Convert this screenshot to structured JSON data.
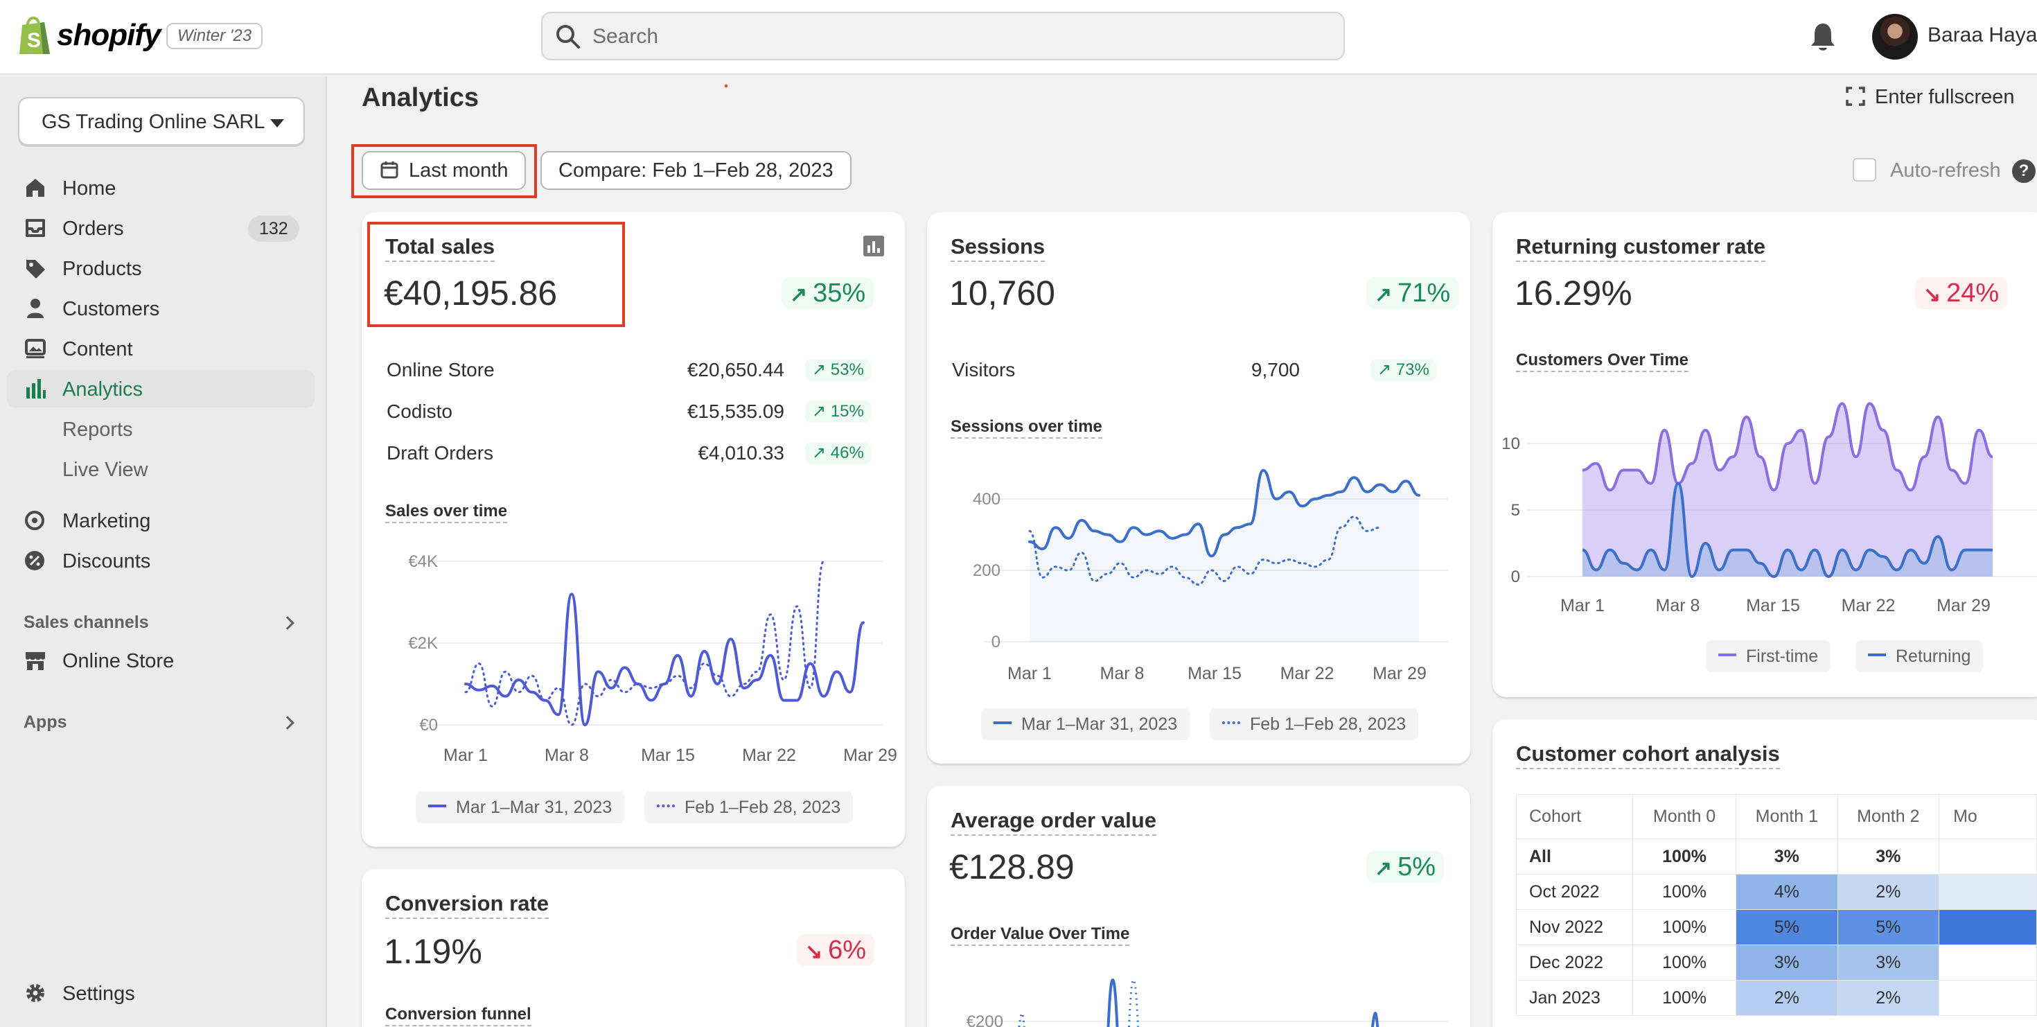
{
  "topbar": {
    "logo_text": "shopify",
    "version": "Winter '23",
    "search_placeholder": "Search",
    "user_name": "Baraa Hayani"
  },
  "sidebar": {
    "store_name": "GS Trading Online SARL",
    "items": [
      {
        "label": "Home",
        "icon": "home-icon"
      },
      {
        "label": "Orders",
        "icon": "orders-icon",
        "badge": "132"
      },
      {
        "label": "Products",
        "icon": "tag-icon"
      },
      {
        "label": "Customers",
        "icon": "person-icon"
      },
      {
        "label": "Content",
        "icon": "image-icon"
      },
      {
        "label": "Analytics",
        "icon": "bar-chart-icon",
        "active": true
      },
      {
        "label": "Reports",
        "sub": true
      },
      {
        "label": "Live View",
        "sub": true
      },
      {
        "label": "Marketing",
        "icon": "target-icon"
      },
      {
        "label": "Discounts",
        "icon": "discount-icon"
      }
    ],
    "sales_channels_label": "Sales channels",
    "online_store_label": "Online Store",
    "apps_label": "Apps",
    "settings_label": "Settings"
  },
  "main": {
    "title": "Analytics",
    "fullscreen_label": "Enter fullscreen",
    "date_button": "Last month",
    "compare_button": "Compare: Feb 1–Feb 28, 2023",
    "auto_refresh_label": "Auto-refresh"
  },
  "total_sales": {
    "title": "Total sales",
    "value": "€40,195.86",
    "change": "35%",
    "rows": [
      {
        "label": "Online Store",
        "value": "€20,650.44",
        "change": "53%"
      },
      {
        "label": "Codisto",
        "value": "€15,535.09",
        "change": "15%"
      },
      {
        "label": "Draft Orders",
        "value": "€4,010.33",
        "change": "46%"
      }
    ],
    "chart_title": "Sales over time",
    "legend_current": "Mar 1–Mar 31, 2023",
    "legend_previous": "Feb 1–Feb 28, 2023"
  },
  "sessions": {
    "title": "Sessions",
    "value": "10,760",
    "change": "71%",
    "visitors_label": "Visitors",
    "visitors_value": "9,700",
    "visitors_change": "73%",
    "chart_title": "Sessions over time",
    "legend_current": "Mar 1–Mar 31, 2023",
    "legend_previous": "Feb 1–Feb 28, 2023"
  },
  "returning": {
    "title": "Returning customer rate",
    "value": "16.29%",
    "change": "24%",
    "chart_title": "Customers Over Time",
    "legend_first": "First-time",
    "legend_returning": "Returning"
  },
  "conversion": {
    "title": "Conversion rate",
    "value": "1.19%",
    "change": "6%",
    "funnel_title": "Conversion funnel"
  },
  "aov": {
    "title": "Average order value",
    "value": "€128.89",
    "change": "5%",
    "chart_title": "Order Value Over Time",
    "y_tick": "€200"
  },
  "cohort": {
    "title": "Customer cohort analysis",
    "headers": [
      "Cohort",
      "Month 0",
      "Month 1",
      "Month 2",
      "Mo"
    ],
    "rows": [
      {
        "label": "All",
        "m0": "100%",
        "m1": "3%",
        "m2": "3%"
      },
      {
        "label": "Oct 2022",
        "m0": "100%",
        "m1": "4%",
        "m2": "2%"
      },
      {
        "label": "Nov 2022",
        "m0": "100%",
        "m1": "5%",
        "m2": "5%"
      },
      {
        "label": "Dec 2022",
        "m0": "100%",
        "m1": "3%",
        "m2": "3%"
      },
      {
        "label": "Jan 2023",
        "m0": "100%",
        "m1": "2%",
        "m2": "2%"
      }
    ]
  },
  "colors": {
    "accent_green": "#1a8a5a",
    "negative_red": "#d72c47",
    "line_blue": "#4f5bd5",
    "purple": "#8b6fe0",
    "highlight_red": "#e03b24"
  },
  "chart_data": [
    {
      "type": "line",
      "title": "Sales over time",
      "x_ticks": [
        "Mar 1",
        "Mar 8",
        "Mar 15",
        "Mar 22",
        "Mar 29"
      ],
      "y_ticks": [
        "€0",
        "€2K",
        "€4K"
      ],
      "ylim": [
        0,
        4000
      ],
      "series": [
        {
          "name": "Mar 1–Mar 31, 2023",
          "style": "solid",
          "values": [
            1000,
            850,
            950,
            700,
            1100,
            800,
            600,
            250,
            3200,
            0,
            1300,
            900,
            1400,
            1000,
            600,
            1000,
            1700,
            700,
            1800,
            1000,
            2100,
            900,
            1100,
            1700,
            600,
            600,
            1500,
            700,
            1300,
            800,
            2500
          ]
        },
        {
          "name": "Feb 1–Feb 28, 2023",
          "style": "dotted",
          "values": [
            800,
            1500,
            450,
            1300,
            800,
            1200,
            600,
            900,
            0,
            1000,
            700,
            1100,
            800,
            1000,
            900,
            1000,
            1200,
            900,
            1500,
            1200,
            700,
            1000,
            1300,
            2700,
            1100,
            2900,
            900,
            4000
          ]
        }
      ]
    },
    {
      "type": "line",
      "title": "Sessions over time",
      "x_ticks": [
        "Mar 1",
        "Mar 8",
        "Mar 15",
        "Mar 22",
        "Mar 29"
      ],
      "y_ticks": [
        "0",
        "200",
        "400"
      ],
      "ylim": [
        0,
        450
      ],
      "series": [
        {
          "name": "Mar 1–Mar 31, 2023",
          "style": "solid",
          "values": [
            280,
            260,
            320,
            290,
            340,
            310,
            300,
            280,
            320,
            300,
            310,
            290,
            300,
            330,
            240,
            300,
            320,
            330,
            480,
            400,
            420,
            380,
            400,
            410,
            420,
            460,
            420,
            440,
            420,
            450,
            410
          ]
        },
        {
          "name": "Feb 1–Feb 28, 2023",
          "style": "dotted",
          "values": [
            310,
            180,
            210,
            200,
            250,
            170,
            190,
            220,
            180,
            200,
            190,
            210,
            180,
            160,
            200,
            170,
            210,
            190,
            230,
            220,
            230,
            220,
            210,
            230,
            320,
            350,
            310,
            320
          ]
        }
      ]
    },
    {
      "type": "area",
      "title": "Customers Over Time",
      "x_ticks": [
        "Mar 1",
        "Mar 8",
        "Mar 15",
        "Mar 22",
        "Mar 29"
      ],
      "y_ticks": [
        "0",
        "5",
        "10"
      ],
      "ylim": [
        0,
        13
      ],
      "series": [
        {
          "name": "First-time",
          "values": [
            8,
            8.5,
            6.5,
            8,
            8,
            7,
            11,
            7,
            8.5,
            11,
            8,
            9,
            12,
            9,
            6.5,
            10,
            11,
            7,
            10.5,
            13,
            9,
            13,
            11,
            8,
            6.5,
            9,
            12,
            8,
            7,
            11,
            9
          ]
        },
        {
          "name": "Returning",
          "values": [
            2,
            0.5,
            2,
            1,
            0.5,
            2,
            0.5,
            7,
            0,
            2.5,
            0.5,
            2,
            2,
            1,
            0,
            2,
            0.5,
            2,
            0,
            2,
            0.5,
            2,
            1.5,
            0.5,
            2,
            1,
            3,
            0.5,
            2,
            2,
            2
          ]
        }
      ]
    },
    {
      "type": "line",
      "title": "Order Value Over Time",
      "y_ticks": [
        "€200"
      ],
      "series": []
    }
  ]
}
